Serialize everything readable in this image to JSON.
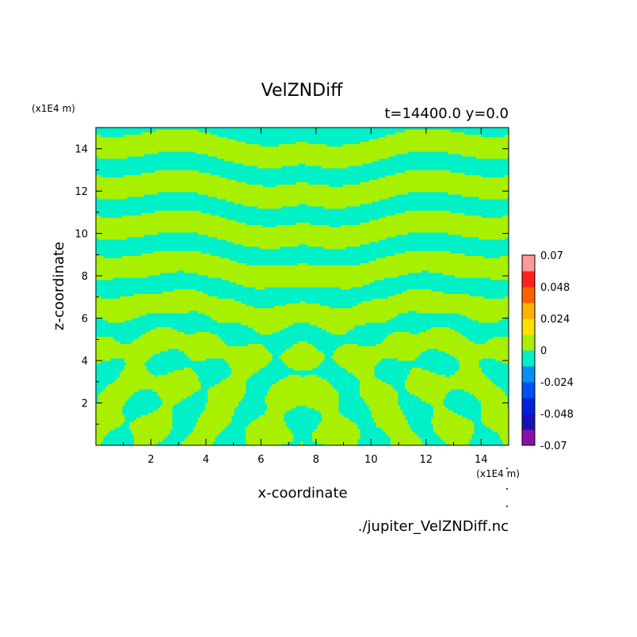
{
  "chart_data": {
    "type": "heatmap",
    "title": "VelZNDiff",
    "subtitle": "t=14400.0 y=0.0",
    "xlabel": "x-coordinate",
    "ylabel": "z-coordinate",
    "x_unit": "(x1E4 m)",
    "y_unit": "(x1E4 m)",
    "xlim": [
      0,
      15
    ],
    "ylim": [
      0,
      15
    ],
    "x_ticks": [
      2,
      4,
      6,
      8,
      10,
      12,
      14
    ],
    "y_ticks": [
      2,
      4,
      6,
      8,
      10,
      12,
      14
    ],
    "colorbar": {
      "levels": [
        -0.07,
        -0.059,
        -0.048,
        -0.036,
        -0.024,
        -0.012,
        0,
        0.012,
        0.024,
        0.036,
        0.048,
        0.059,
        0.07
      ],
      "tick_labels": [
        "0.07",
        "0.048",
        "0.024",
        "0",
        "-0.024",
        "-0.048",
        "-0.07"
      ],
      "colors": [
        "#8a10a8",
        "#1a10b8",
        "#0020e0",
        "#0050f0",
        "#0090f8",
        "#00f0c8",
        "#a8f000",
        "#ffe000",
        "#ffb000",
        "#ff6000",
        "#ff2020",
        "#ff9898"
      ]
    },
    "field_description_levels": [
      "-0.012 to 0",
      "0 to 0.012"
    ],
    "field_colors": {
      "negative": "#00f0c8",
      "positive": "#a8f000"
    }
  },
  "footer": {
    "file": "./jupiter_VelZNDiff.nc"
  }
}
